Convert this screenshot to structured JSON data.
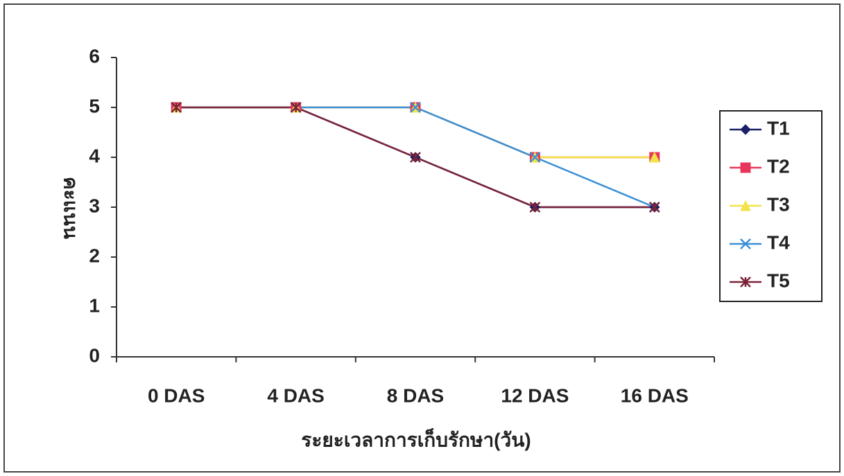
{
  "chart_data": {
    "type": "line",
    "x_label": "ระยะเวลาการเก็บรักษา(วัน)",
    "y_label": "คะแนน",
    "categories": [
      "0 DAS",
      "4 DAS",
      "8 DAS",
      "12 DAS",
      "16 DAS"
    ],
    "series": [
      {
        "name": "T1",
        "color": "#1a1f66",
        "marker": "diamond",
        "values": [
          5,
          5,
          4,
          3,
          3
        ]
      },
      {
        "name": "T2",
        "color": "#e8365a",
        "marker": "square",
        "values": [
          5,
          5,
          5,
          4,
          4
        ]
      },
      {
        "name": "T3",
        "color": "#f2e34a",
        "marker": "triangle",
        "values": [
          5,
          5,
          5,
          4,
          4
        ]
      },
      {
        "name": "T4",
        "color": "#3a8fd6",
        "marker": "x",
        "values": [
          5,
          5,
          5,
          4,
          3
        ]
      },
      {
        "name": "T5",
        "color": "#7a2238",
        "marker": "star",
        "values": [
          5,
          5,
          4,
          3,
          3
        ]
      }
    ],
    "ylim": [
      0,
      6
    ],
    "yticks": [
      0,
      1,
      2,
      3,
      4,
      5,
      6
    ],
    "grid": false,
    "legend": "right"
  }
}
